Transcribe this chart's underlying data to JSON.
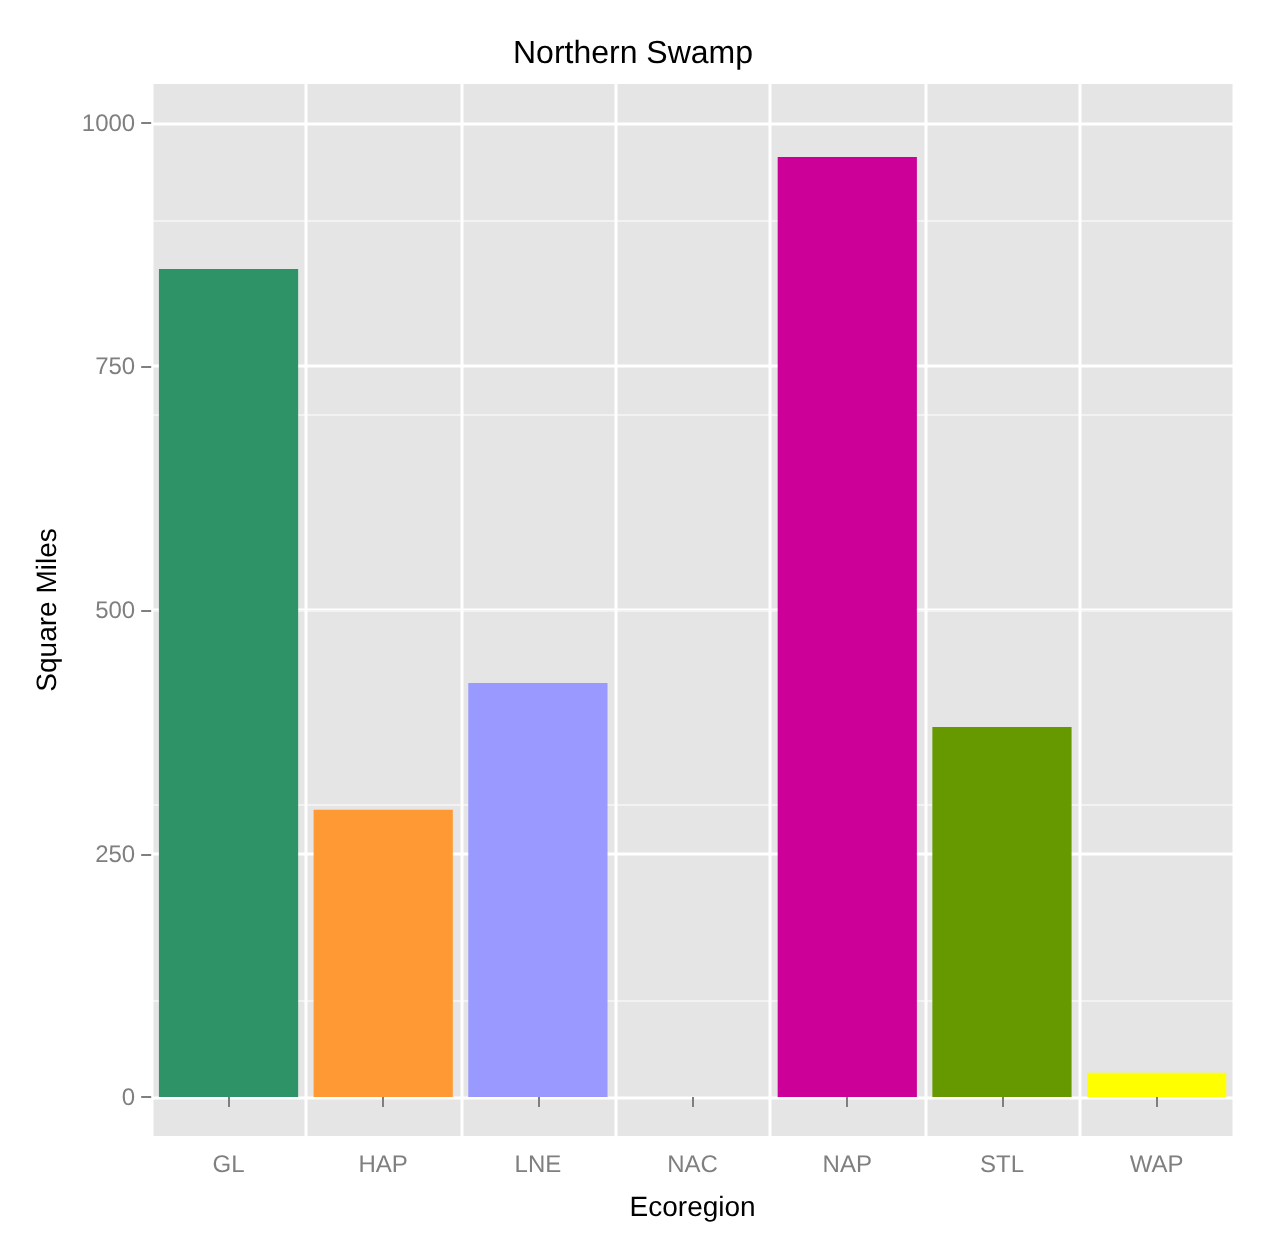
{
  "chart_data": {
    "type": "bar",
    "title": "Northern Swamp",
    "xlabel": "Ecoregion",
    "ylabel": "Square Miles",
    "categories": [
      "GL",
      "HAP",
      "LNE",
      "NAC",
      "NAP",
      "STL",
      "WAP"
    ],
    "values": [
      850,
      295,
      425,
      0,
      965,
      380,
      25
    ],
    "colors": [
      "#2e9467",
      "#ff9933",
      "#9999ff",
      "#999999",
      "#cc0099",
      "#669900",
      "#ffff00"
    ],
    "ylim": [
      -40,
      1040
    ],
    "yticks": [
      0,
      250,
      500,
      750,
      1000
    ],
    "grid": true
  }
}
